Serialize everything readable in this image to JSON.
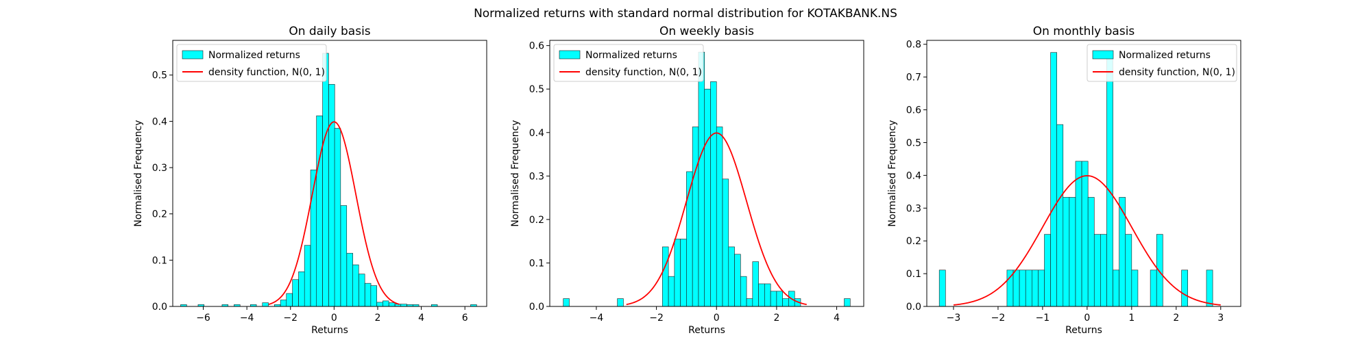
{
  "figure": {
    "suptitle": "Normalized returns with standard normal distribution for KOTAKBANK.NS"
  },
  "chart_data": [
    {
      "type": "bar",
      "title": "On daily basis",
      "xlabel": "Returns",
      "ylabel": "Normalised Frequency",
      "xlim": [
        -7.4,
        7.0
      ],
      "ylim": [
        0,
        0.575
      ],
      "xticks": [
        -6,
        -4,
        -2,
        0,
        2,
        4,
        6
      ],
      "xtick_labels": [
        "−6",
        "−4",
        "−2",
        "0",
        "2",
        "4",
        "6"
      ],
      "yticks": [
        0.0,
        0.1,
        0.2,
        0.3,
        0.4,
        0.5
      ],
      "ytick_labels": [
        "0.0",
        "0.1",
        "0.2",
        "0.3",
        "0.4",
        "0.5"
      ],
      "bin_width": 0.276,
      "bins": [
        [
          -6.9,
          0.004
        ],
        [
          -6.1,
          0.004
        ],
        [
          -5.0,
          0.004
        ],
        [
          -4.45,
          0.004
        ],
        [
          -3.7,
          0.004
        ],
        [
          -3.15,
          0.008
        ],
        [
          -2.6,
          0.004
        ],
        [
          -2.32,
          0.014
        ],
        [
          -2.05,
          0.028
        ],
        [
          -1.77,
          0.058
        ],
        [
          -1.49,
          0.075
        ],
        [
          -1.22,
          0.132
        ],
        [
          -0.94,
          0.295
        ],
        [
          -0.67,
          0.412
        ],
        [
          -0.39,
          0.547
        ],
        [
          -0.11,
          0.48
        ],
        [
          0.16,
          0.385
        ],
        [
          0.44,
          0.218
        ],
        [
          0.72,
          0.115
        ],
        [
          0.99,
          0.09
        ],
        [
          1.27,
          0.07
        ],
        [
          1.55,
          0.05
        ],
        [
          1.82,
          0.045
        ],
        [
          2.1,
          0.009
        ],
        [
          2.37,
          0.012
        ],
        [
          2.65,
          0.008
        ],
        [
          2.93,
          0.005
        ],
        [
          3.2,
          0.005
        ],
        [
          3.48,
          0.004
        ],
        [
          3.75,
          0.004
        ],
        [
          4.6,
          0.004
        ],
        [
          6.4,
          0.004
        ]
      ],
      "series": [
        {
          "name": "Normalized returns",
          "kind": "histogram"
        },
        {
          "name": "density function, N(0, 1)",
          "kind": "line",
          "x_range": [
            -3,
            3
          ],
          "color": "#ff0000"
        }
      ],
      "legend_position": "upper-left"
    },
    {
      "type": "bar",
      "title": "On weekly basis",
      "xlabel": "Returns",
      "ylabel": "Normalised Frequency",
      "xlim": [
        -5.55,
        4.9
      ],
      "ylim": [
        0,
        0.612
      ],
      "xticks": [
        -4,
        -2,
        0,
        2,
        4
      ],
      "xtick_labels": [
        "−4",
        "−2",
        "0",
        "2",
        "4"
      ],
      "yticks": [
        0.0,
        0.1,
        0.2,
        0.3,
        0.4,
        0.5,
        0.6
      ],
      "ytick_labels": [
        "0.0",
        "0.1",
        "0.2",
        "0.3",
        "0.4",
        "0.5",
        "0.6"
      ],
      "bin_width": 0.2,
      "bins": [
        [
          -5.0,
          0.018
        ],
        [
          -3.2,
          0.018
        ],
        [
          -1.7,
          0.137
        ],
        [
          -1.5,
          0.069
        ],
        [
          -1.3,
          0.155
        ],
        [
          -1.1,
          0.155
        ],
        [
          -0.9,
          0.31
        ],
        [
          -0.7,
          0.413
        ],
        [
          -0.5,
          0.585
        ],
        [
          -0.3,
          0.5
        ],
        [
          -0.1,
          0.517
        ],
        [
          0.1,
          0.413
        ],
        [
          0.3,
          0.293
        ],
        [
          0.5,
          0.137
        ],
        [
          0.7,
          0.12
        ],
        [
          0.9,
          0.069
        ],
        [
          1.1,
          0.018
        ],
        [
          1.3,
          0.103
        ],
        [
          1.5,
          0.052
        ],
        [
          1.7,
          0.052
        ],
        [
          1.9,
          0.035
        ],
        [
          2.1,
          0.035
        ],
        [
          2.3,
          0.018
        ],
        [
          2.5,
          0.035
        ],
        [
          2.7,
          0.018
        ],
        [
          4.35,
          0.018
        ]
      ],
      "series": [
        {
          "name": "Normalized returns",
          "kind": "histogram"
        },
        {
          "name": "density function, N(0, 1)",
          "kind": "line",
          "x_range": [
            -3,
            3
          ],
          "color": "#ff0000"
        }
      ],
      "legend_position": "upper-left"
    },
    {
      "type": "bar",
      "title": "On monthly basis",
      "xlabel": "Returns",
      "ylabel": "Normalised Frequency",
      "xlim": [
        -3.6,
        3.45
      ],
      "ylim": [
        0,
        0.812
      ],
      "xticks": [
        -3,
        -2,
        -1,
        0,
        1,
        2,
        3
      ],
      "xtick_labels": [
        "−3",
        "−2",
        "−1",
        "0",
        "1",
        "2",
        "3"
      ],
      "yticks": [
        0.0,
        0.1,
        0.2,
        0.3,
        0.4,
        0.5,
        0.6,
        0.7,
        0.8
      ],
      "ytick_labels": [
        "0.0",
        "0.1",
        "0.2",
        "0.3",
        "0.4",
        "0.5",
        "0.6",
        "0.7",
        "0.8"
      ],
      "bin_width": 0.14,
      "bins": [
        [
          -3.25,
          0.111
        ],
        [
          -1.73,
          0.111
        ],
        [
          -1.59,
          0.111
        ],
        [
          -1.45,
          0.111
        ],
        [
          -1.31,
          0.111
        ],
        [
          -1.17,
          0.111
        ],
        [
          -1.03,
          0.111
        ],
        [
          -0.89,
          0.22
        ],
        [
          -0.75,
          0.775
        ],
        [
          -0.61,
          0.555
        ],
        [
          -0.47,
          0.333
        ],
        [
          -0.33,
          0.333
        ],
        [
          -0.19,
          0.443
        ],
        [
          -0.05,
          0.443
        ],
        [
          0.09,
          0.333
        ],
        [
          0.23,
          0.22
        ],
        [
          0.37,
          0.22
        ],
        [
          0.51,
          0.775
        ],
        [
          0.65,
          0.111
        ],
        [
          0.79,
          0.333
        ],
        [
          0.93,
          0.22
        ],
        [
          1.07,
          0.111
        ],
        [
          1.49,
          0.111
        ],
        [
          1.63,
          0.22
        ],
        [
          2.19,
          0.111
        ],
        [
          2.75,
          0.111
        ]
      ],
      "series": [
        {
          "name": "Normalized returns",
          "kind": "histogram"
        },
        {
          "name": "density function, N(0, 1)",
          "kind": "line",
          "x_range": [
            -3,
            3
          ],
          "color": "#ff0000"
        }
      ],
      "legend_position": "upper-right"
    }
  ]
}
